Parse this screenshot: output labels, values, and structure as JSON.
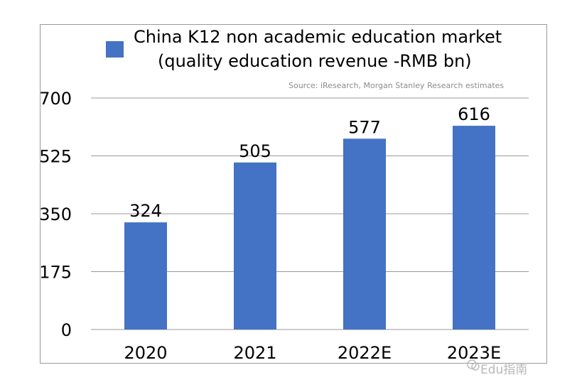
{
  "chart_data": {
    "type": "bar",
    "title_lines": [
      "China K12 non academic education market",
      "(quality education revenue -RMB bn)"
    ],
    "legend": [
      "China K12 non academic education market (quality education revenue -RMB bn)"
    ],
    "source": "Source: iResearch, Morgan Stanley Research estimates",
    "categories": [
      "2020",
      "2021",
      "2022E",
      "2023E"
    ],
    "values": [
      324,
      505,
      577,
      616
    ],
    "data_labels": [
      "324",
      "505",
      "577",
      "616"
    ],
    "ylim": [
      0,
      700
    ],
    "yticks": [
      0,
      175,
      350,
      525,
      700
    ],
    "ytick_labels": [
      "0",
      "175",
      "350",
      "525",
      "700"
    ],
    "grid": true,
    "bar_color": "#4472C4"
  },
  "watermark": "Edu指南"
}
